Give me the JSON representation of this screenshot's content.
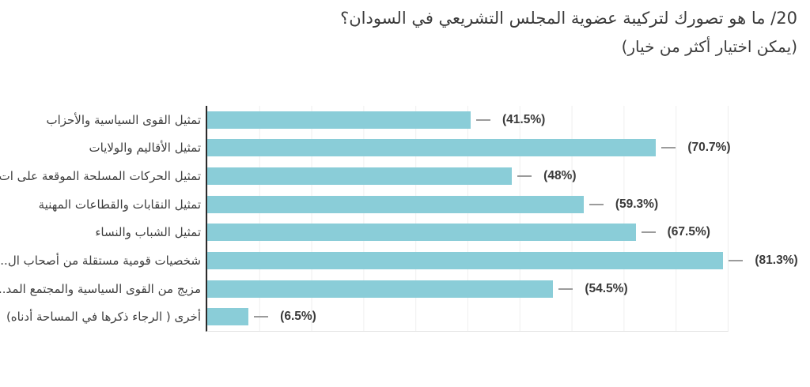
{
  "chart_data": {
    "type": "bar",
    "orientation": "horizontal",
    "title": "20/ ما هو تصورك لتركيبة عضوية المجلس التشريعي في السودان؟",
    "subtitle": "(يمكن اختيار أكثر من خيار)",
    "categories": [
      "تمثيل القوى السياسية والأحزاب",
      "تمثيل الأقاليم والولايات",
      "تمثيل الحركات المسلحة الموقعة على ات...",
      "تمثيل النقابات والقطاعات المهنية",
      "تمثيل الشباب والنساء",
      "شخصيات قومية مستقلة من أصحاب ال...",
      "مزيج من القوى السياسية والمجتمع المد...",
      "أخرى ( الرجاء ذكرها في المساحة أدناه)"
    ],
    "values": [
      41.5,
      70.7,
      48,
      59.3,
      67.5,
      81.3,
      54.5,
      6.5
    ],
    "value_labels": [
      "(41.5%)",
      "(70.7%)",
      "(48%)",
      "(59.3%)",
      "(67.5%)",
      "(81.3%)",
      "(54.5%)",
      "(6.5%)"
    ],
    "xlabel": "",
    "ylabel": "",
    "xlim": [
      0,
      82
    ],
    "gridline_divisions": 10,
    "grid": true,
    "legend": false,
    "value_label_position": "right_of_bar",
    "error_whiskers": true,
    "bar_color": "#8ACDD8",
    "error_bar_color": "#9B9B9B",
    "axis_color": "#2B2B2B",
    "grid_color": "#EFEFEF",
    "text_color": "#3C3C3C"
  }
}
